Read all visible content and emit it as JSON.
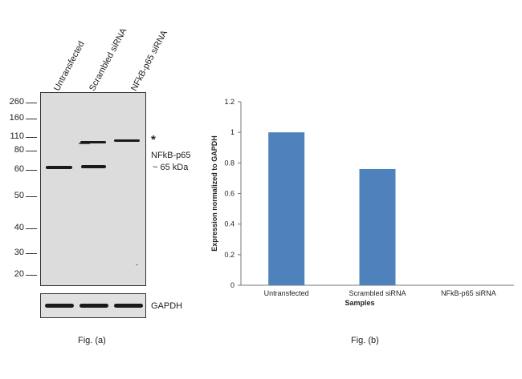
{
  "fig_a": {
    "lanes": [
      "Untransfected",
      "Scrambled siRNA",
      "NFkB-p65 siRNA"
    ],
    "mw_markers": [
      "260",
      "160",
      "110",
      "80",
      "60",
      "50",
      "40",
      "30",
      "20"
    ],
    "asterisk": "*",
    "target_label_line1": "NFkB-p65",
    "target_label_line2": "~ 65 kDa",
    "loading_control": "GAPDH",
    "caption": "Fig. (a)"
  },
  "fig_b": {
    "caption": "Fig. (b)"
  },
  "chart_data": {
    "type": "bar",
    "categories": [
      "Untransfected",
      "Scrambled siRNA",
      "NFkB-p65 siRNA"
    ],
    "values": [
      1.0,
      0.76,
      0.0
    ],
    "title": "",
    "xlabel": "Samples",
    "ylabel": "Expression  normalized to GAPDH",
    "ylim": [
      0,
      1.2
    ],
    "yticks": [
      "0",
      "0.2",
      "0.4",
      "0.6",
      "0.8",
      "1",
      "1.2"
    ],
    "bar_color": "#4f81bd",
    "grid": false,
    "legend": "none"
  }
}
